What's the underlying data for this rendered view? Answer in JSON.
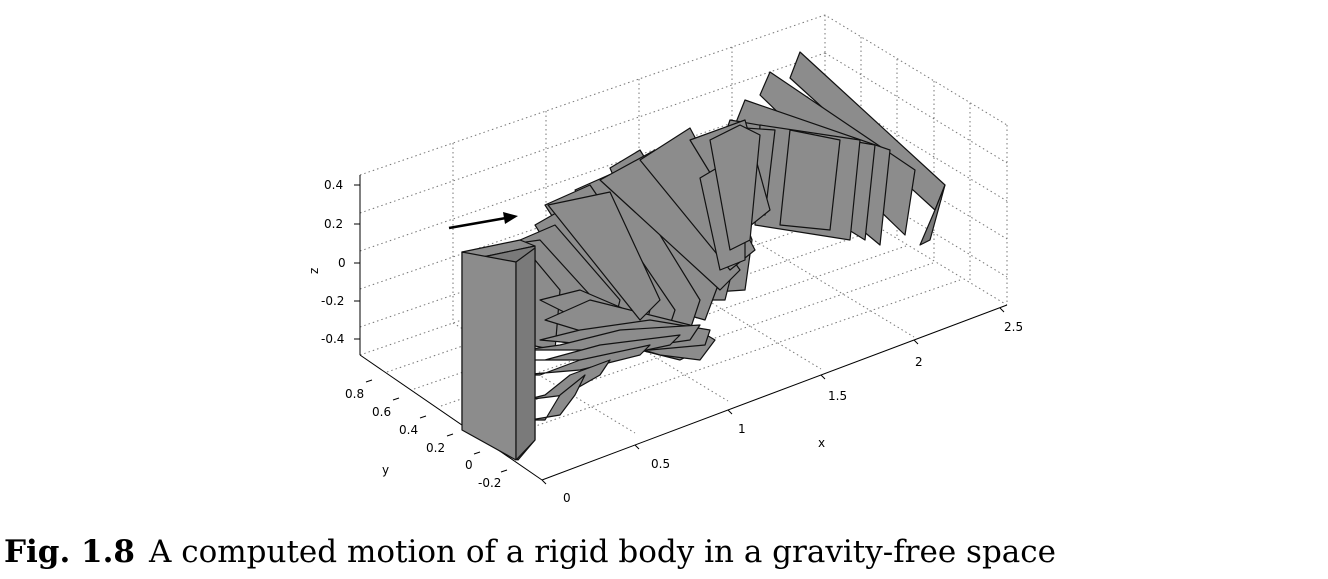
{
  "figure": {
    "axes": {
      "x": {
        "label": "x",
        "ticks": [
          "0",
          "0.5",
          "1",
          "1.5",
          "2",
          "2.5"
        ]
      },
      "y": {
        "label": "y",
        "ticks": [
          "-0.2",
          "0",
          "0.2",
          "0.4",
          "0.6",
          "0.8"
        ]
      },
      "z": {
        "label": "z",
        "ticks": [
          "0.4",
          "0.2",
          "0",
          "-0.2",
          "-0.4"
        ]
      }
    },
    "grid": true,
    "object_color": "#8c8c8c",
    "arrow": "arrow-icon"
  },
  "caption": {
    "label": "Fig. 1.8",
    "text": "A computed motion of a rigid body in a gravity-free space"
  }
}
